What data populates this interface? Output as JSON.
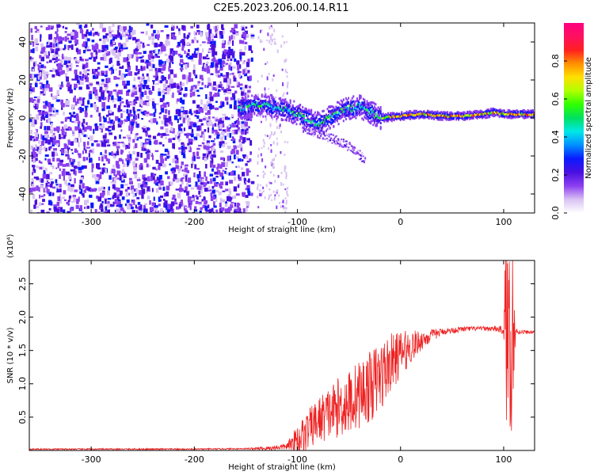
{
  "title": "C2E5.2023.206.00.14.R11",
  "chart_data": [
    {
      "type": "heatmap",
      "name": "spectrogram",
      "xlabel": "Height of straight line (km)",
      "ylabel": "Frequency (Hz)",
      "xlim": [
        -360,
        130
      ],
      "ylim": [
        -50,
        50
      ],
      "x_ticks": [
        -300,
        -200,
        -100,
        0,
        100
      ],
      "y_ticks": [
        -40,
        -20,
        0,
        20,
        40
      ],
      "colorbar": {
        "label": "Normalized spectral amplitude",
        "range": [
          0.0,
          1.0
        ],
        "ticks": [
          "0.0",
          "0.2",
          "0.4",
          "0.6",
          "0.8"
        ],
        "colors": [
          "#ffffff",
          "#d8c2f2",
          "#8c3ff0",
          "#4a10e0",
          "#0a1aff",
          "#0090ff",
          "#00e8e8",
          "#00e060",
          "#30ff00",
          "#b0ff00",
          "#ffe000",
          "#ff9000",
          "#ff2020",
          "#ff1060",
          "#ff0080"
        ]
      },
      "features": {
        "noise_region_x": [
          -360,
          -145
        ],
        "band_center_hz": [
          [
            -155,
            5
          ],
          [
            -140,
            7
          ],
          [
            -125,
            6
          ],
          [
            -110,
            4
          ],
          [
            -100,
            2
          ],
          [
            -90,
            -1
          ],
          [
            -80,
            -3
          ],
          [
            -70,
            0
          ],
          [
            -60,
            3
          ],
          [
            -50,
            5
          ],
          [
            -40,
            6
          ],
          [
            -30,
            3
          ],
          [
            -20,
            0
          ],
          [
            0,
            1
          ],
          [
            20,
            2
          ],
          [
            40,
            1
          ],
          [
            60,
            1
          ],
          [
            80,
            2
          ],
          [
            90,
            3
          ],
          [
            100,
            2
          ],
          [
            130,
            2
          ]
        ],
        "faint_tail": [
          [
            -95,
            -5
          ],
          [
            -70,
            -10
          ],
          [
            -50,
            -15
          ],
          [
            -35,
            -22
          ]
        ]
      }
    },
    {
      "type": "line",
      "name": "snr",
      "xlabel": "Height of straight line (km)",
      "ylabel": "SNR (10 * v/v)",
      "y_multiplier": "(x10⁴)",
      "xlim": [
        -360,
        130
      ],
      "ylim": [
        0,
        2.85
      ],
      "x_ticks": [
        -300,
        -200,
        -100,
        0,
        100
      ],
      "y_ticks": [
        0.5,
        1.0,
        1.5,
        2.0,
        2.5
      ],
      "color": "#ee2222",
      "profile": [
        [
          -360,
          0.02
        ],
        [
          -200,
          0.02
        ],
        [
          -130,
          0.03
        ],
        [
          -110,
          0.06
        ],
        [
          -100,
          0.15
        ],
        [
          -90,
          0.3
        ],
        [
          -80,
          0.45
        ],
        [
          -70,
          0.55
        ],
        [
          -60,
          0.65
        ],
        [
          -50,
          0.72
        ],
        [
          -40,
          0.85
        ],
        [
          -30,
          0.95
        ],
        [
          -20,
          1.1
        ],
        [
          -10,
          1.3
        ],
        [
          0,
          1.45
        ],
        [
          10,
          1.55
        ],
        [
          20,
          1.65
        ],
        [
          30,
          1.72
        ],
        [
          40,
          1.78
        ],
        [
          60,
          1.82
        ],
        [
          80,
          1.83
        ],
        [
          95,
          1.82
        ],
        [
          100,
          1.8
        ],
        [
          103,
          1.85
        ],
        [
          108,
          1.8
        ],
        [
          115,
          1.78
        ],
        [
          130,
          1.77
        ]
      ],
      "noise_amp": [
        [
          -360,
          0.01
        ],
        [
          -150,
          0.01
        ],
        [
          -110,
          0.05
        ],
        [
          -100,
          0.25
        ],
        [
          -50,
          0.5
        ],
        [
          -20,
          0.55
        ],
        [
          0,
          0.35
        ],
        [
          20,
          0.15
        ],
        [
          40,
          0.05
        ],
        [
          80,
          0.03
        ],
        [
          100,
          0.06
        ],
        [
          102,
          1.6
        ],
        [
          110,
          1.5
        ],
        [
          112,
          0.04
        ],
        [
          130,
          0.02
        ]
      ]
    }
  ]
}
